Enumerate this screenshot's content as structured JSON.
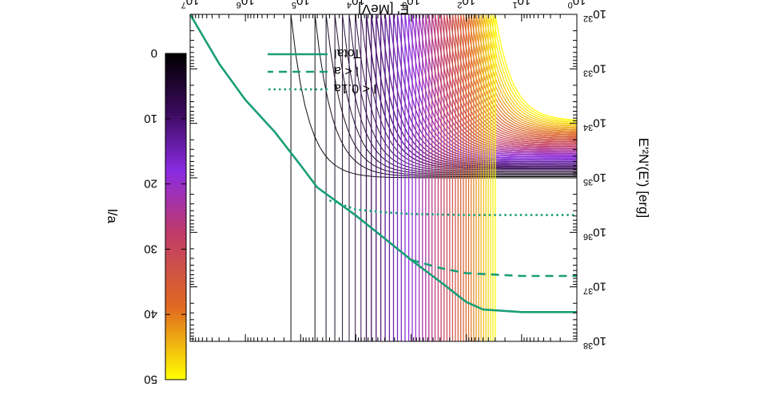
{
  "chart_data": {
    "type": "line",
    "orientation": "image-rotated-180",
    "xlabel": "E' [MeV]",
    "ylabel": "E'²N'(E') [erg]",
    "x_scale": "log",
    "y_scale": "log",
    "xlim": [
      1,
      10000000
    ],
    "ylim": [
      1e+32,
      1e+38
    ],
    "x_ticks": [
      {
        "base": "10",
        "exp": "0",
        "value": 1
      },
      {
        "base": "10",
        "exp": "1",
        "value": 10
      },
      {
        "base": "10",
        "exp": "2",
        "value": 100
      },
      {
        "base": "10",
        "exp": "3",
        "value": 1000
      },
      {
        "base": "10",
        "exp": "4",
        "value": 10000
      },
      {
        "base": "10",
        "exp": "5",
        "value": 100000
      },
      {
        "base": "10",
        "exp": "6",
        "value": 1000000
      },
      {
        "base": "10",
        "exp": "7",
        "value": 10000000
      }
    ],
    "y_ticks": [
      {
        "base": "10",
        "exp": "32",
        "value": 1e+32
      },
      {
        "base": "10",
        "exp": "33",
        "value": 1e+33
      },
      {
        "base": "10",
        "exp": "34",
        "value": 1e+34
      },
      {
        "base": "10",
        "exp": "35",
        "value": 1e+35
      },
      {
        "base": "10",
        "exp": "36",
        "value": 1e+36
      },
      {
        "base": "10",
        "exp": "37",
        "value": 1e+37
      },
      {
        "base": "10",
        "exp": "38",
        "value": 1e+38
      }
    ],
    "colorbar": {
      "label": "l/a",
      "range": [
        0,
        50
      ],
      "ticks": [
        "0",
        "10",
        "20",
        "30",
        "40",
        "50"
      ],
      "colors": [
        "#000000",
        "#3b0a5c",
        "#8a2be2",
        "#c03a6a",
        "#e06a20",
        "#ffff00"
      ]
    },
    "series": [
      {
        "name": "Total",
        "style": "solid",
        "color": "#1a9e77",
        "points": [
          [
            10000000,
            1e+32
          ],
          [
            3000000,
            8e+32
          ],
          [
            1000000,
            3.7e+33
          ],
          [
            300000,
            1.4e+34
          ],
          [
            100000,
            5.9e+34
          ],
          [
            50000,
            1.5e+35
          ],
          [
            10000,
            4.9e+35
          ],
          [
            3000,
            1.3e+36
          ],
          [
            1000,
            3.2e+36
          ],
          [
            300,
            8e+36
          ],
          [
            100,
            1.9e+37
          ],
          [
            50,
            2.6e+37
          ],
          [
            10,
            2.9e+37
          ],
          [
            1,
            2.9e+37
          ]
        ]
      },
      {
        "name": "l < a",
        "style": "dashed",
        "color": "#1a9e77",
        "points": [
          [
            1000,
            3.2e+36
          ],
          [
            300,
            4.5e+36
          ],
          [
            100,
            5.6e+36
          ],
          [
            10,
            6.3e+36
          ],
          [
            1,
            6.3e+36
          ]
        ]
      },
      {
        "name": "l < 0.1a",
        "style": "dotted",
        "color": "#1a9e77",
        "points": [
          [
            30000,
            2.6e+35
          ],
          [
            10000,
            3.8e+35
          ],
          [
            3000,
            4.3e+35
          ],
          [
            1000,
            4.6e+35
          ],
          [
            100,
            4.8e+35
          ],
          [
            1,
            4.8e+35
          ]
        ]
      }
    ],
    "component_family": {
      "note": "family of curves colored by l/a; each rises from a cutoff energy to a plateau",
      "count": 50,
      "cutoff_energy_range_MeV": [
        30,
        150000
      ],
      "plateau_range_erg": [
        9e+33,
        1e+35
      ]
    },
    "legend": {
      "placement": "inside, near the Total curve plateau",
      "entries": [
        "Total",
        "l < a",
        "l < 0.1a"
      ]
    }
  }
}
